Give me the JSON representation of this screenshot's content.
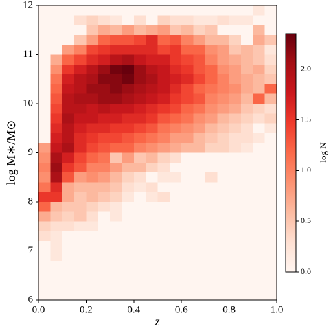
{
  "chart_data": {
    "type": "heatmap",
    "xlabel": "z",
    "ylabel": "log M∗/M⊙",
    "colorbar_label": "log N",
    "colormap": "Reds",
    "xlim": [
      0,
      1
    ],
    "ylim": [
      6,
      12
    ],
    "clim": [
      0,
      2.35
    ],
    "xticks": [
      {
        "value": 0,
        "label": "0.0"
      },
      {
        "value": 0.2,
        "label": "0.2"
      },
      {
        "value": 0.4,
        "label": "0.4"
      },
      {
        "value": 0.6,
        "label": "0.6"
      },
      {
        "value": 0.8,
        "label": "0.8"
      },
      {
        "value": 1,
        "label": "1.0"
      }
    ],
    "yticks": [
      6,
      7,
      8,
      9,
      10,
      11,
      12
    ],
    "cticks": [
      {
        "value": 0,
        "label": "0.0"
      },
      {
        "value": 0.5,
        "label": "0.5"
      },
      {
        "value": 1,
        "label": "1.0"
      },
      {
        "value": 1.5,
        "label": "1.5"
      },
      {
        "value": 2,
        "label": "2.0"
      }
    ],
    "z": [
      [
        0,
        0,
        0,
        0,
        0,
        0,
        0,
        0,
        0,
        0,
        0,
        0,
        0,
        0,
        0,
        0,
        0,
        0,
        0.2,
        0
      ],
      [
        0,
        0,
        0,
        0.3,
        0.4,
        0.3,
        0.2,
        0,
        0.3,
        0,
        0.4,
        0.3,
        0.3,
        0.2,
        0.2,
        0.3,
        0.2,
        0.2,
        0,
        0
      ],
      [
        0,
        0,
        0,
        0,
        0.5,
        0.7,
        0.6,
        0.8,
        0.6,
        0.7,
        0.8,
        0.5,
        0.6,
        0.4,
        0.5,
        0,
        0,
        0,
        0.6,
        0
      ],
      [
        0,
        0,
        0,
        0.5,
        0.8,
        1.2,
        1.3,
        1.3,
        1.4,
        1.6,
        1.2,
        1.3,
        1.0,
        0.8,
        0.6,
        0.6,
        0.4,
        0,
        0.7,
        0.5
      ],
      [
        0,
        0,
        0.8,
        1.0,
        1.4,
        1.5,
        1.6,
        1.6,
        1.6,
        1.6,
        1.4,
        1.5,
        1.2,
        1.2,
        0.9,
        0.8,
        0.5,
        0.6,
        0.5,
        0.2
      ],
      [
        0,
        0.7,
        1.2,
        1.4,
        1.6,
        1.7,
        1.9,
        2.0,
        1.8,
        1.7,
        1.7,
        1.5,
        1.4,
        1.3,
        1.0,
        0.8,
        0.7,
        0.6,
        0.5,
        0.3
      ],
      [
        0,
        0.9,
        1.5,
        1.7,
        1.9,
        2.1,
        2.3,
        2.35,
        2.1,
        1.9,
        1.8,
        1.6,
        1.5,
        1.3,
        1.2,
        0.9,
        0.8,
        0.6,
        0.7,
        0.4
      ],
      [
        0,
        1.1,
        1.7,
        1.9,
        2.0,
        2.2,
        2.2,
        2.3,
        2.1,
        2.0,
        1.8,
        1.7,
        1.6,
        1.4,
        1.2,
        1.0,
        0.8,
        0.7,
        0.6,
        0.5
      ],
      [
        0,
        1.2,
        1.8,
        1.9,
        2.1,
        2.1,
        2.2,
        2.1,
        2.0,
        1.9,
        1.8,
        1.6,
        1.4,
        1.2,
        1.1,
        1.0,
        0.9,
        0.7,
        0.6,
        1.2
      ],
      [
        0,
        1.3,
        1.9,
        2.0,
        2.0,
        2.1,
        2.1,
        2.0,
        1.9,
        1.8,
        1.7,
        1.5,
        1.4,
        1.3,
        1.0,
        0.9,
        0.8,
        0.6,
        1.2,
        0.6
      ],
      [
        0,
        1.4,
        1.9,
        1.9,
        1.8,
        1.9,
        1.8,
        1.8,
        1.7,
        1.6,
        1.5,
        1.4,
        1.2,
        1.1,
        0.9,
        0.8,
        0.7,
        0.5,
        0.4,
        0.3
      ],
      [
        0,
        1.5,
        2.0,
        1.8,
        1.8,
        1.7,
        1.7,
        1.6,
        1.6,
        1.5,
        1.3,
        1.2,
        1.1,
        0.9,
        0.8,
        0.6,
        0.5,
        0.4,
        0.3,
        0.4
      ],
      [
        0,
        1.6,
        1.9,
        1.7,
        1.6,
        1.6,
        1.5,
        1.5,
        1.4,
        1.3,
        1.1,
        1.0,
        0.9,
        0.8,
        0.6,
        0.5,
        0.4,
        0.3,
        0,
        0.2
      ],
      [
        0,
        1.7,
        1.9,
        1.6,
        1.5,
        1.4,
        1.4,
        1.3,
        1.2,
        1.1,
        1.0,
        0.8,
        0.8,
        0.6,
        0.5,
        0.4,
        0.3,
        0.3,
        0.2,
        0
      ],
      [
        0.8,
        1.8,
        2.0,
        1.6,
        1.4,
        1.3,
        1.2,
        1.2,
        1.0,
        0.9,
        0.8,
        0.7,
        0.6,
        0.6,
        0.4,
        0.4,
        0.3,
        0.2,
        0,
        0
      ],
      [
        0.9,
        2.0,
        1.7,
        1.4,
        1.2,
        1.1,
        0.5,
        0.8,
        0.5,
        0.6,
        0.4,
        0.3,
        0,
        0,
        0,
        0,
        0,
        0,
        0,
        0
      ],
      [
        1.0,
        2.1,
        1.5,
        1.3,
        1.0,
        1.0,
        0.8,
        0.6,
        0.6,
        0.4,
        0.3,
        0,
        0,
        0,
        0,
        0,
        0,
        0,
        0,
        0
      ],
      [
        0.9,
        2.0,
        1.3,
        0.8,
        0.9,
        0.8,
        0.6,
        0.4,
        0.3,
        0,
        0.2,
        0.2,
        0,
        0,
        0.3,
        0,
        0,
        0,
        0,
        0
      ],
      [
        1.1,
        1.6,
        0.7,
        0.6,
        0.6,
        0.6,
        0.5,
        0.3,
        0.2,
        0.3,
        0,
        0,
        0,
        0,
        0,
        0,
        0,
        0,
        0,
        0
      ],
      [
        1.5,
        1.5,
        0.7,
        0.5,
        0.6,
        0.5,
        0.4,
        0.2,
        0,
        0.2,
        0.3,
        0,
        0,
        0,
        0,
        0,
        0,
        0,
        0,
        0
      ],
      [
        1.2,
        0.6,
        0.5,
        0.5,
        0.4,
        0.3,
        0.2,
        0,
        0,
        0,
        0,
        0,
        0,
        0,
        0,
        0,
        0,
        0,
        0,
        0
      ],
      [
        0.7,
        0.5,
        0.4,
        0.5,
        0.3,
        0,
        0.2,
        0,
        0,
        0,
        0,
        0,
        0,
        0,
        0,
        0,
        0,
        0,
        0,
        0
      ],
      [
        0.4,
        0.3,
        0.3,
        0.2,
        0.2,
        0,
        0,
        0,
        0,
        0,
        0,
        0,
        0,
        0,
        0,
        0,
        0,
        0,
        0,
        0
      ],
      [
        0.3,
        0.2,
        0,
        0,
        0,
        0,
        0,
        0,
        0,
        0,
        0,
        0,
        0,
        0,
        0,
        0,
        0,
        0,
        0,
        0
      ],
      [
        0,
        0.2,
        0,
        0,
        0,
        0,
        0,
        0,
        0,
        0,
        0,
        0,
        0,
        0,
        0,
        0,
        0,
        0,
        0,
        0
      ],
      [
        0,
        0.2,
        0,
        0,
        0,
        0,
        0,
        0,
        0,
        0,
        0,
        0,
        0,
        0,
        0,
        0,
        0,
        0,
        0,
        0
      ],
      [
        0,
        0,
        0,
        0,
        0,
        0,
        0,
        0,
        0,
        0,
        0,
        0,
        0,
        0,
        0,
        0,
        0,
        0,
        0,
        0
      ],
      [
        0,
        0,
        0,
        0,
        0,
        0,
        0,
        0,
        0,
        0,
        0,
        0,
        0,
        0,
        0,
        0,
        0,
        0,
        0,
        0
      ],
      [
        0,
        0,
        0,
        0,
        0,
        0,
        0,
        0,
        0,
        0,
        0,
        0,
        0,
        0,
        0,
        0,
        0,
        0,
        0,
        0
      ],
      [
        0,
        0,
        0,
        0,
        0,
        0,
        0,
        0,
        0,
        0,
        0,
        0,
        0,
        0,
        0,
        0,
        0,
        0,
        0,
        0
      ]
    ]
  }
}
